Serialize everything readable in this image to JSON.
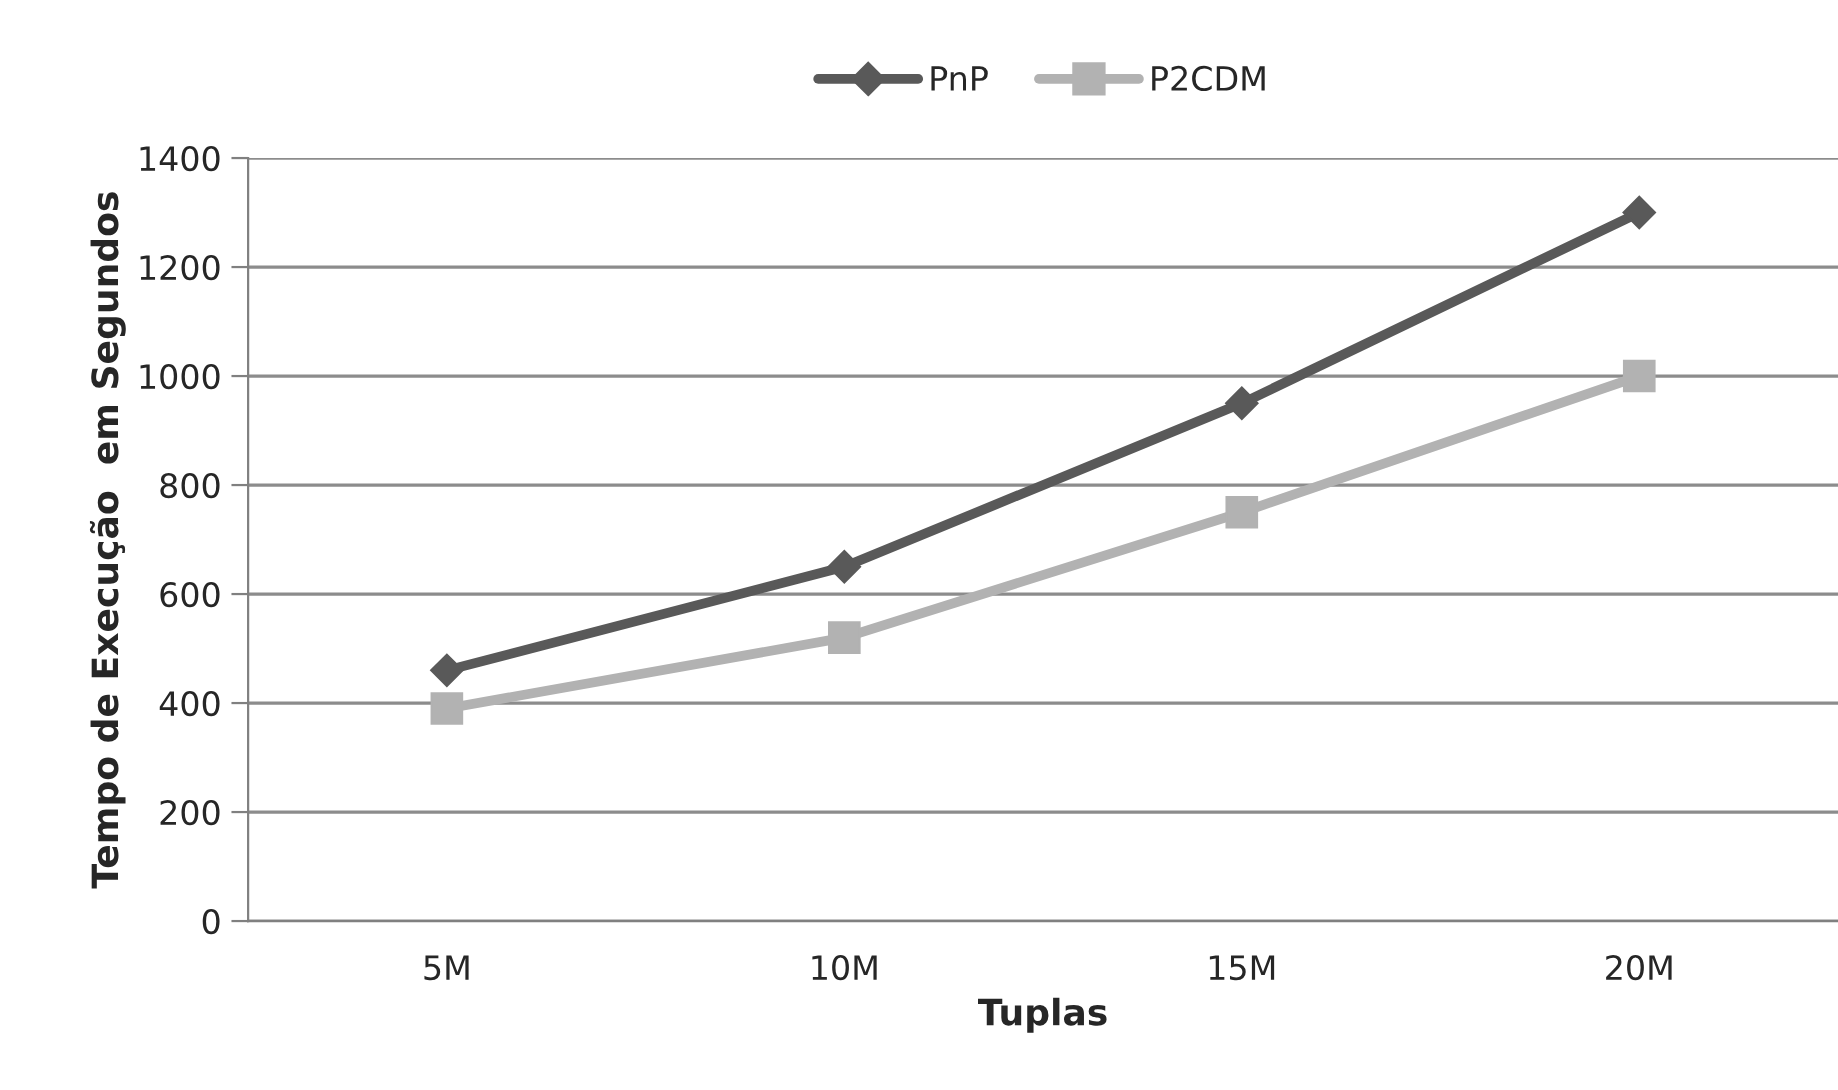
{
  "chart_data": {
    "type": "line",
    "xlabel": "Tuplas",
    "ylabel": "Tempo de Execução  em Segundos",
    "categories": [
      "5M",
      "10M",
      "15M",
      "20M"
    ],
    "series": [
      {
        "name": "PnP",
        "color": "#595959",
        "values": [
          460,
          650,
          950,
          1300
        ],
        "marker": "diamond"
      },
      {
        "name": "P2CDM",
        "color": "#b2b2b2",
        "values": [
          390,
          520,
          750,
          1000
        ],
        "marker": "square"
      }
    ],
    "ylim": [
      0,
      1400
    ],
    "yticks": [
      0,
      200,
      400,
      600,
      800,
      1000,
      1200,
      1400
    ],
    "grid": "y",
    "legend": "top",
    "line_style": "solid"
  }
}
